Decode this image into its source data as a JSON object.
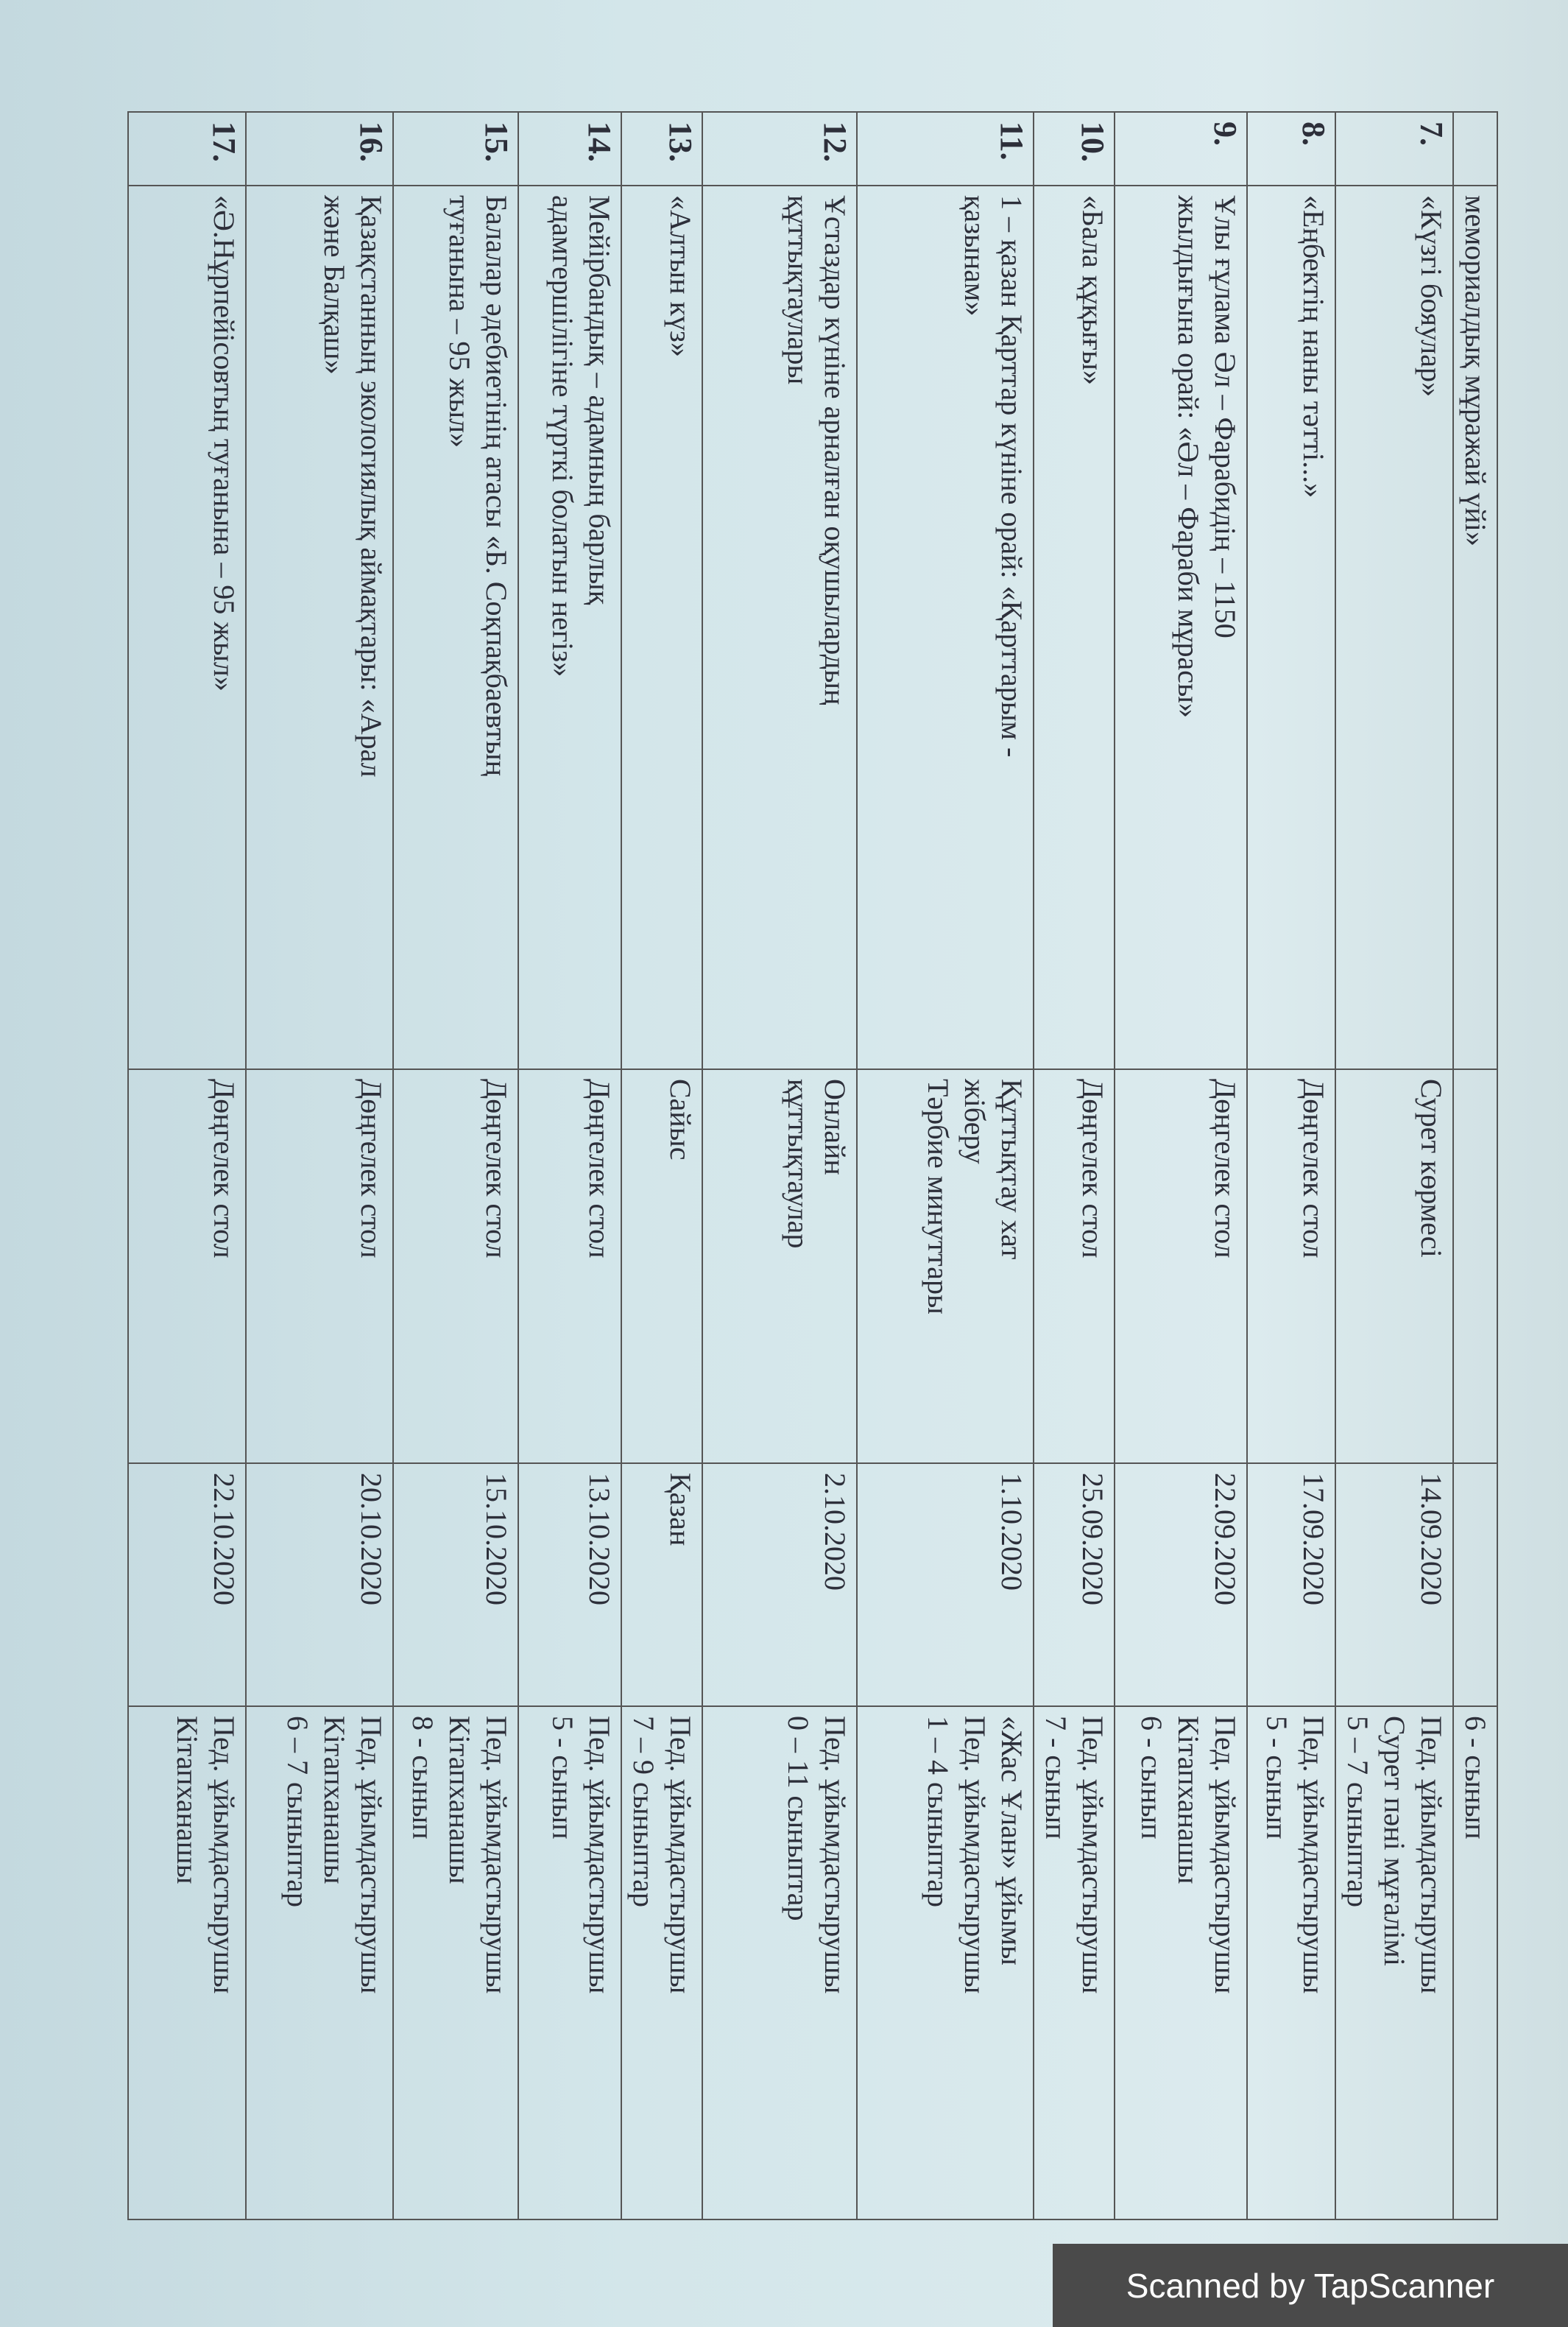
{
  "table": {
    "rows": [
      {
        "number": null,
        "event": [
          "мемориалдық мұражай үйі»"
        ],
        "form": [],
        "date": null,
        "responsible": [
          "6 - сынып"
        ]
      },
      {
        "number": "7.",
        "event": [
          "«Күзгі бояулар»"
        ],
        "form": [
          "Сурет көрмесі"
        ],
        "date": "14.09.2020",
        "responsible": [
          "Пед. ұйымдастырушы",
          "Сурет пәні мұғалімі",
          "5 – 7 сыныптар"
        ]
      },
      {
        "number": "8.",
        "event": [
          "«Еңбектің наны тәтті...»"
        ],
        "form": [
          "Дөңгелек стол"
        ],
        "date": "17.09.2020",
        "responsible": [
          "Пед. ұйымдастырушы",
          "5 - сынып"
        ]
      },
      {
        "number": "9.",
        "event": [
          "Ұлы ғұлама Әл – Фарабидің – 1150",
          "жылдығына орай: «Әл – Фараби мұрасы»"
        ],
        "form": [
          "Дөңгелек стол"
        ],
        "date": "22.09.2020",
        "responsible": [
          "Пед. ұйымдастырушы",
          "Кітапханашы",
          "6 - сынып"
        ]
      },
      {
        "number": "10.",
        "event": [
          "«Бала құқығы»"
        ],
        "form": [
          "Дөңгелек стол"
        ],
        "date": "25.09.2020",
        "responsible": [
          "Пед. ұйымдастырушы",
          "7 - сынып"
        ]
      },
      {
        "number": "11.",
        "event": [
          "1 – қазан Қарттар күніне орай: «Қарттарым -",
          "қазынам»"
        ],
        "form": [
          "Құттықтау хат",
          "жіберу",
          "Тәрбие минуттары"
        ],
        "date": "1.10.2020",
        "responsible": [
          "«Жас Ұлан» ұйымы",
          "Пед. ұйымдастырушы",
          "1 – 4 сыныптар"
        ]
      },
      {
        "number": "12.",
        "event": [
          "Ұстаздар күніне арналған оқушылардың",
          "құттықтаулары"
        ],
        "form": [
          "Онлайн",
          "құттықтаулар"
        ],
        "date": "2.10.2020",
        "responsible": [
          "Пед. ұйымдастырушы",
          "0 – 11 сыныптар"
        ]
      },
      {
        "number": "13.",
        "event": [
          "«Алтын күз»"
        ],
        "form": [
          "Сайыс"
        ],
        "date": "Қазан",
        "responsible": [
          "Пед. ұйымдастырушы",
          "7 – 9 сыныптар"
        ]
      },
      {
        "number": "14.",
        "event": [
          "Мейірбандық – адамның барлық",
          "адамгершілігіне түрткі болатын негіз»"
        ],
        "form": [
          "Дөңгелек стол"
        ],
        "date": "13.10.2020",
        "responsible": [
          "Пед. ұйымдастырушы",
          "5 - сынып"
        ]
      },
      {
        "number": "15.",
        "event": [
          "Балалар әдебиетінің атасы «Б. Соқпақбаевтың",
          "туғанына – 95 жыл»"
        ],
        "form": [
          "Дөңгелек стол"
        ],
        "date": "15.10.2020",
        "responsible": [
          "Пед. ұйымдастырушы",
          "Кітапханашы",
          "8 - сынып"
        ]
      },
      {
        "number": "16.",
        "event": [
          "Қазақстанның экологиялық аймақтары: «Арал",
          "және Балқаш»"
        ],
        "form": [
          "Дөңгелек стол"
        ],
        "date": "20.10.2020",
        "responsible": [
          "Пед. ұйымдастырушы",
          "Кітапханашы",
          "6 – 7 сыныптар"
        ]
      },
      {
        "number": "17.",
        "event": [
          "«Ә.Нұрпейісовтың туғанына – 95 жыл»"
        ],
        "form": [
          "Дөңгелек стол"
        ],
        "date": "22.10.2020",
        "responsible": [
          "Пед. ұйымдастырушы",
          "Кітапханашы"
        ]
      }
    ]
  },
  "footer": {
    "text": "Scanned by TapScanner"
  }
}
